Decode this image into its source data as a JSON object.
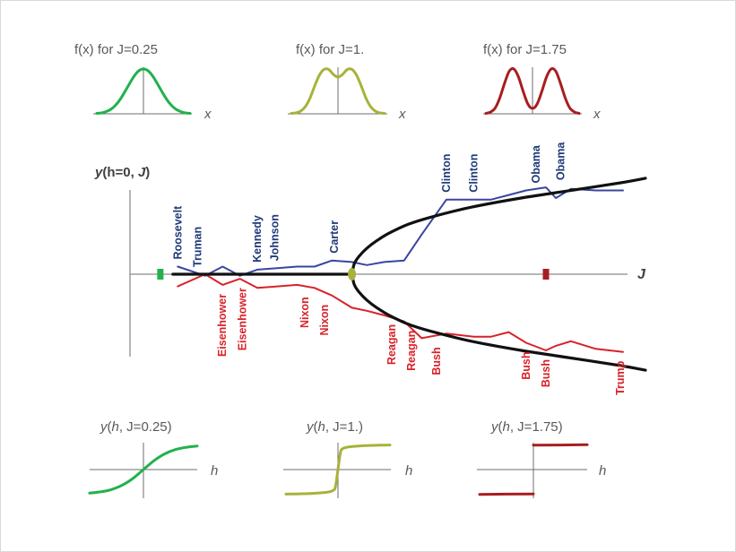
{
  "colors": {
    "green": "#22b14c",
    "olive": "#a8b23a",
    "darkred": "#a81d20",
    "blue": "#3a45a1",
    "red": "#d9222a",
    "navy_text": "#1f3a78",
    "red_text": "#d9222a",
    "black": "#111111",
    "axis": "#6e6e6e",
    "label_gray": "#595959"
  },
  "chart_data": [
    {
      "type": "line",
      "panel": "distribution",
      "title": "f(x) for J=0.25",
      "xlabel": "x",
      "color": "green",
      "J": 0.25,
      "x": [
        -3,
        -2.7,
        -2.4,
        -2.1,
        -1.8,
        -1.5,
        -1.2,
        -0.9,
        -0.6,
        -0.3,
        0,
        0.3,
        0.6,
        0.9,
        1.2,
        1.5,
        1.8,
        2.1,
        2.4,
        2.7,
        3
      ],
      "y": [
        0.01,
        0.02,
        0.05,
        0.1,
        0.19,
        0.32,
        0.49,
        0.67,
        0.84,
        0.96,
        1,
        0.96,
        0.84,
        0.67,
        0.49,
        0.32,
        0.19,
        0.1,
        0.05,
        0.02,
        0.01
      ]
    },
    {
      "type": "line",
      "panel": "distribution",
      "title": "f(x) for J=1.",
      "xlabel": "x",
      "color": "olive",
      "J": 1.0,
      "x": [
        -3,
        -2.7,
        -2.4,
        -2.1,
        -1.8,
        -1.5,
        -1.2,
        -0.9,
        -0.6,
        -0.3,
        0,
        0.3,
        0.6,
        0.9,
        1.2,
        1.5,
        1.8,
        2.1,
        2.4,
        2.7,
        3
      ],
      "y": [
        0.01,
        0.02,
        0.06,
        0.16,
        0.35,
        0.62,
        0.86,
        0.99,
        0.99,
        0.88,
        0.82,
        0.88,
        0.99,
        0.99,
        0.86,
        0.62,
        0.35,
        0.16,
        0.06,
        0.02,
        0.01
      ]
    },
    {
      "type": "line",
      "panel": "distribution",
      "title": "f(x) for J=1.75",
      "xlabel": "x",
      "color": "darkred",
      "J": 1.75,
      "x": [
        -3,
        -2.7,
        -2.4,
        -2.1,
        -1.8,
        -1.5,
        -1.2,
        -0.9,
        -0.6,
        -0.3,
        0,
        0.3,
        0.6,
        0.9,
        1.2,
        1.5,
        1.8,
        2.1,
        2.4,
        2.7,
        3
      ],
      "y": [
        0.01,
        0.04,
        0.13,
        0.36,
        0.68,
        0.95,
        1,
        0.82,
        0.5,
        0.22,
        0.12,
        0.22,
        0.5,
        0.82,
        1,
        0.95,
        0.68,
        0.36,
        0.13,
        0.04,
        0.01
      ]
    },
    {
      "type": "line",
      "panel": "bifurcation",
      "ylabel_parts": [
        "y",
        "(h=0, ",
        "J",
        ")"
      ],
      "xlabel": "J",
      "xlim": [
        0,
        2
      ],
      "ylim": [
        -1,
        1
      ],
      "markers": [
        {
          "J": 0.05,
          "color": "green"
        },
        {
          "J": 0.82,
          "color": "olive"
        },
        {
          "J": 1.6,
          "color": "darkred"
        }
      ],
      "fit_upper": {
        "x": [
          0.82,
          0.83,
          0.85,
          0.88,
          0.92,
          0.97,
          1.05,
          1.15,
          1.3,
          1.5,
          1.7,
          1.9,
          2.0
        ],
        "y": [
          0,
          0.07,
          0.12,
          0.17,
          0.22,
          0.27,
          0.33,
          0.38,
          0.44,
          0.5,
          0.55,
          0.6,
          0.63
        ]
      },
      "fit_lower": {
        "x": [
          0.82,
          0.83,
          0.85,
          0.88,
          0.92,
          0.97,
          1.05,
          1.15,
          1.3,
          1.5,
          1.7,
          1.9,
          2.0
        ],
        "y": [
          0,
          -0.07,
          -0.12,
          -0.17,
          -0.22,
          -0.27,
          -0.33,
          -0.38,
          -0.44,
          -0.5,
          -0.55,
          -0.6,
          -0.63
        ]
      },
      "fit_flat": {
        "x": [
          0.1,
          0.82
        ],
        "y": [
          0,
          0
        ]
      },
      "series_dem_top": {
        "x": [
          0.12,
          0.23,
          0.3,
          0.37,
          0.44,
          0.52,
          0.6,
          0.67,
          0.74,
          0.82,
          0.88,
          0.95,
          1.03,
          1.1,
          1.2,
          1.31,
          1.38,
          1.45,
          1.52,
          1.6,
          1.64,
          1.7,
          1.8,
          1.91
        ],
        "y": [
          0.05,
          -0.01,
          0.05,
          -0.01,
          0.03,
          0.04,
          0.05,
          0.05,
          0.09,
          0.08,
          0.06,
          0.08,
          0.09,
          0.26,
          0.49,
          0.49,
          0.49,
          0.52,
          0.55,
          0.57,
          0.5,
          0.56,
          0.55,
          0.55
        ]
      },
      "series_rep_bottom": {
        "x": [
          0.12,
          0.23,
          0.3,
          0.37,
          0.44,
          0.52,
          0.6,
          0.67,
          0.74,
          0.82,
          0.88,
          0.95,
          1.03,
          1.1,
          1.2,
          1.31,
          1.38,
          1.45,
          1.52,
          1.6,
          1.64,
          1.7,
          1.8,
          1.91
        ],
        "y": [
          -0.08,
          0,
          -0.07,
          -0.03,
          -0.09,
          -0.08,
          -0.07,
          -0.09,
          -0.14,
          -0.22,
          -0.24,
          -0.27,
          -0.31,
          -0.42,
          -0.39,
          -0.41,
          -0.41,
          -0.38,
          -0.45,
          -0.5,
          -0.47,
          -0.44,
          -0.49,
          -0.51
        ]
      },
      "president_labels_top": [
        {
          "name": "Roosevelt",
          "J": 0.12,
          "y": 0.05
        },
        {
          "name": "Truman",
          "J": 0.2,
          "y": 0.0
        },
        {
          "name": "Kennedy",
          "J": 0.44,
          "y": 0.03
        },
        {
          "name": "Johnson",
          "J": 0.51,
          "y": 0.04
        },
        {
          "name": "Carter",
          "J": 0.75,
          "y": 0.09
        },
        {
          "name": "Clinton",
          "J": 1.2,
          "y": 0.49
        },
        {
          "name": "Clinton",
          "J": 1.31,
          "y": 0.49
        },
        {
          "name": "Obama",
          "J": 1.56,
          "y": 0.55
        },
        {
          "name": "Obama",
          "J": 1.66,
          "y": 0.57
        }
      ],
      "president_labels_bottom": [
        {
          "name": "Eisenhower",
          "J": 0.3,
          "y": -0.07
        },
        {
          "name": "Eisenhower",
          "J": 0.38,
          "y": -0.03
        },
        {
          "name": "Nixon",
          "J": 0.63,
          "y": -0.09
        },
        {
          "name": "Nixon",
          "J": 0.71,
          "y": -0.14
        },
        {
          "name": "Reagan",
          "J": 0.98,
          "y": -0.27
        },
        {
          "name": "Reagan",
          "J": 1.06,
          "y": -0.31
        },
        {
          "name": "Bush",
          "J": 1.16,
          "y": -0.42
        },
        {
          "name": "Bush",
          "J": 1.52,
          "y": -0.45
        },
        {
          "name": "Bush",
          "J": 1.6,
          "y": -0.5
        },
        {
          "name": "Trump",
          "J": 1.9,
          "y": -0.51
        }
      ]
    },
    {
      "type": "line",
      "panel": "response",
      "title_parts": [
        "y",
        "(",
        "h",
        ", J=0.25)"
      ],
      "xlabel": "h",
      "color": "green",
      "x": [
        -1,
        -0.8,
        -0.6,
        -0.4,
        -0.2,
        0,
        0.2,
        0.4,
        0.6,
        0.8,
        1
      ],
      "y": [
        -0.94,
        -0.89,
        -0.8,
        -0.63,
        -0.36,
        0,
        0.36,
        0.63,
        0.8,
        0.89,
        0.94
      ]
    },
    {
      "type": "line",
      "panel": "response",
      "title_parts": [
        "y",
        "(",
        "h",
        ", J=1.)"
      ],
      "xlabel": "h",
      "color": "olive",
      "x": [
        -1,
        -0.8,
        -0.6,
        -0.4,
        -0.2,
        -0.1,
        -0.05,
        0,
        0.05,
        0.1,
        0.2,
        0.4,
        0.6,
        0.8,
        1
      ],
      "y": [
        -0.98,
        -0.97,
        -0.96,
        -0.94,
        -0.9,
        -0.84,
        -0.7,
        0,
        0.7,
        0.84,
        0.9,
        0.94,
        0.96,
        0.97,
        0.98
      ]
    },
    {
      "type": "line",
      "panel": "response",
      "title_parts": [
        "y",
        "(",
        "h",
        ", J=1.75)"
      ],
      "xlabel": "h",
      "color": "darkred",
      "x": [
        -1,
        -0.5,
        0,
        0,
        0.5,
        1
      ],
      "y": [
        -0.99,
        -0.98,
        -0.97,
        0.97,
        0.98,
        0.99
      ]
    }
  ]
}
